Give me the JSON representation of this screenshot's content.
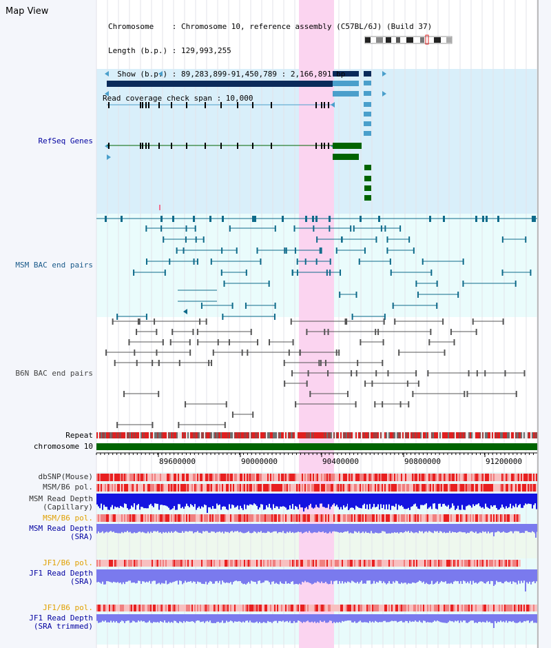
{
  "page": {
    "title": "Map View"
  },
  "info": {
    "chromosome": "Chromosome    : Chromosome 10, reference assembly (C57BL/6J) (Build 37)",
    "length": "Length (b.p.) : 129,993,255",
    "show": "  Show (b.p.) : 89,283,899-91,450,789 : 2,166,891 bp",
    "coverage": "Read coverage check span : 10,000"
  },
  "tracks": {
    "refseq": "RefSeq Genes",
    "msm_bac": "MSM BAC end pairs",
    "b6n_bac": "B6N BAC end pairs",
    "repeat": "Repeat",
    "chromosome": "chromosome 10",
    "dbsnp": "dbSNP(Mouse)",
    "msm_b6_pol_1": "MSM/B6 pol.",
    "msm_read_depth_cap": "MSM Read Depth",
    "capillary": "(Capillary)",
    "msm_b6_pol_2": "MSM/B6 pol.",
    "msm_read_depth_sra": "MSM Read Depth",
    "sra_1": "(SRA)",
    "jf1_b6_pol_1": "JF1/B6 pol.",
    "jf1_read_depth_sra": "JF1 Read Depth",
    "sra_2": "(SRA)",
    "jf1_b6_pol_2": "JF1/B6 pol.",
    "jf1_read_depth_trim": "JF1 Read Depth",
    "sra_trimmed": "(SRA trimmed)"
  },
  "axis": {
    "ticks": [
      "89600000",
      "90000000",
      "90400000",
      "90800000",
      "91200000"
    ]
  },
  "colors": {
    "refseq_bg": "#d9effa",
    "msm_bg": "#eafcfc",
    "highlight": "#fbd4f0",
    "gene_dark": "#0a2a5a",
    "gene_mid": "#4a9fcb",
    "gene_green": "#006400",
    "msm_feature": "#0e6a8a",
    "b6n_feature": "#555555",
    "repeat_red": "#e02020",
    "depth_blue": "#1414e0",
    "depth_light": "#7a7aee",
    "label_blue": "#0000a0",
    "label_teal": "#1a5a8a",
    "label_orange": "#e0a000",
    "label_gray": "#333333"
  }
}
